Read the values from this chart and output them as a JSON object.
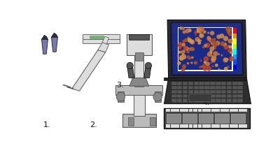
{
  "background_color": "#ffffff",
  "label_fontsize": 8,
  "dark_gray": "#555555",
  "mid_gray": "#888888",
  "light_gray": "#bbbbbb",
  "lighter_gray": "#dddddd",
  "dark_navy": "#2d2d4e",
  "purple_blue": "#7878aa",
  "black": "#111111",
  "white": "#ffffff",
  "teal_cap": "#4a8aaa",
  "screen_dark": "#2a2a3a",
  "screen_blue": "#2244aa",
  "img_blue": "#2244aa",
  "key_color": "#444444",
  "key_dark": "#222222",
  "laptop_body": "#333333",
  "film_dark": "#444444",
  "green_sample": "#66aa66"
}
